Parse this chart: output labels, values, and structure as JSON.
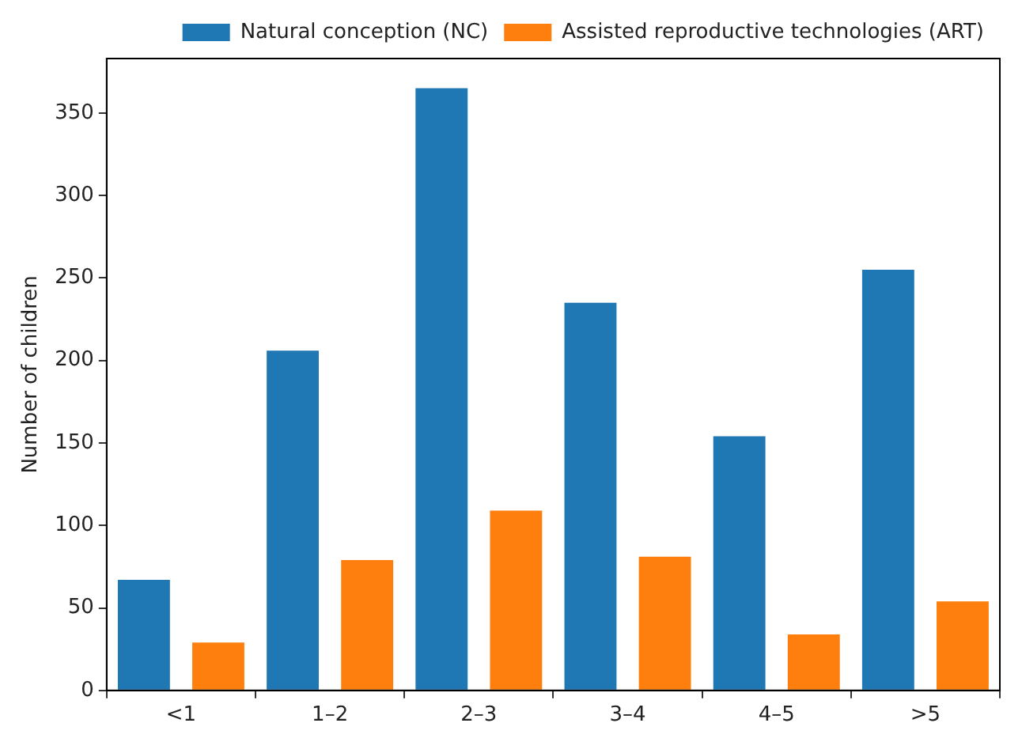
{
  "chart_data": {
    "type": "bar",
    "ylabel": "Number of children",
    "categories": [
      "<1",
      "1–2",
      "2–3",
      "3–4",
      "4–5",
      ">5"
    ],
    "series": [
      {
        "name": "Natural conception (NC)",
        "color": "#1f77b4",
        "values": [
          67,
          206,
          365,
          235,
          154,
          255
        ]
      },
      {
        "name": "Assisted reproductive technologies (ART)",
        "color": "#ff7f0e",
        "values": [
          29,
          79,
          109,
          81,
          34,
          54
        ]
      }
    ],
    "ylim": [
      0,
      383
    ],
    "yticks": [
      0,
      50,
      100,
      150,
      200,
      250,
      300,
      350
    ],
    "grid": false,
    "legend": "top right"
  }
}
